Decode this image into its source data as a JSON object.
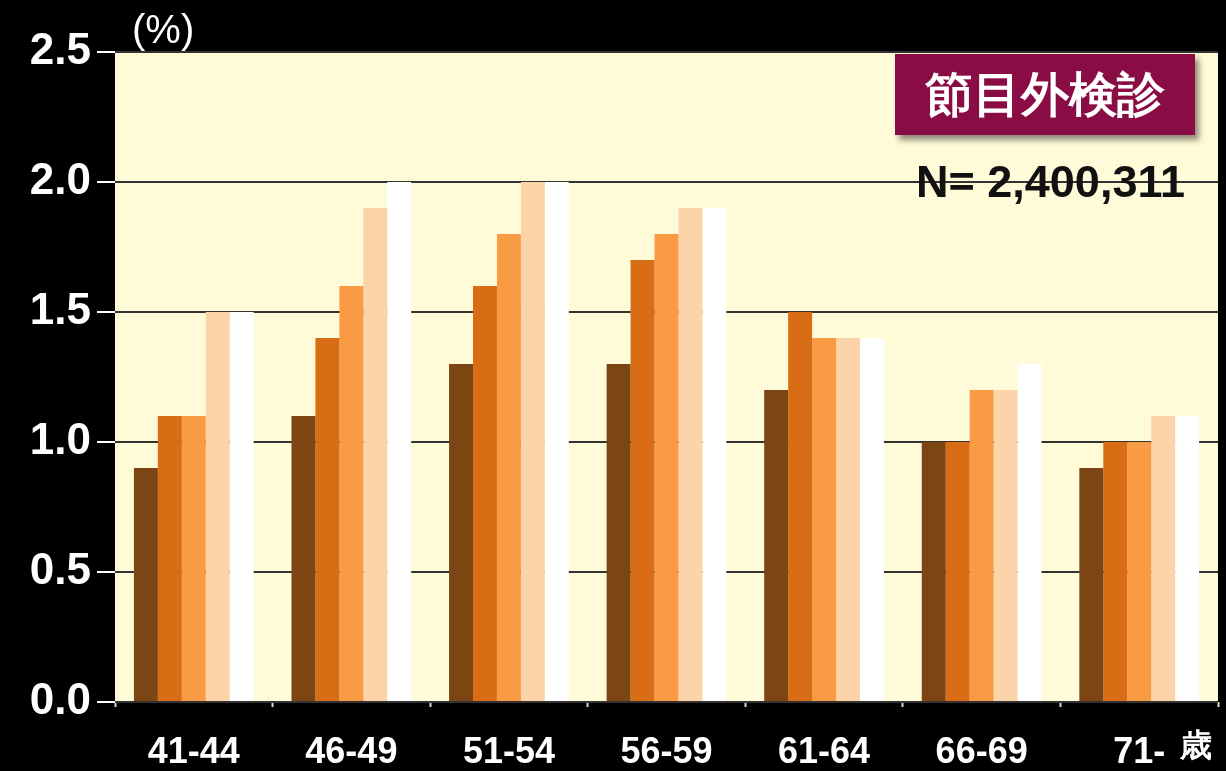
{
  "chart_data": {
    "type": "bar",
    "title": "節目外検診",
    "ylabel": "(%)",
    "xlabel": "歳",
    "annotations": [
      "N= 2,400,311"
    ],
    "categories": [
      "41-44",
      "46-49",
      "51-54",
      "56-59",
      "61-64",
      "66-69",
      "71-"
    ],
    "series": [
      {
        "color": "#7d4513",
        "values": [
          0.9,
          1.1,
          1.3,
          1.3,
          1.2,
          1.0,
          0.9
        ]
      },
      {
        "color": "#d96d16",
        "values": [
          1.1,
          1.4,
          1.6,
          1.7,
          1.5,
          1.0,
          1.0
        ]
      },
      {
        "color": "#f99a45",
        "values": [
          1.1,
          1.6,
          1.8,
          1.8,
          1.4,
          1.2,
          1.0
        ]
      },
      {
        "color": "#fdd3aa",
        "values": [
          1.5,
          1.9,
          2.0,
          1.9,
          1.4,
          1.2,
          1.1
        ]
      },
      {
        "color": "#ffffff",
        "values": [
          1.5,
          2.0,
          2.0,
          1.9,
          1.4,
          1.3,
          1.1
        ]
      }
    ],
    "ylim": [
      0,
      2.5
    ],
    "yticks": [
      {
        "value": 0,
        "label": "0.0"
      },
      0.5,
      {
        "value": 1,
        "label": "1.0"
      },
      1.5,
      {
        "value": 2,
        "label": "2.0"
      },
      2.5
    ],
    "grid": "y"
  }
}
